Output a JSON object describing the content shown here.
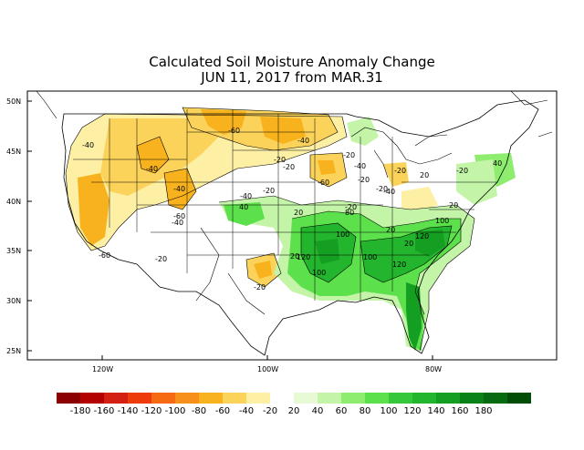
{
  "title": "Calculated Soil Moisture Anomaly Change",
  "subtitle": "JUN 11, 2017 from MAR.31",
  "lat_labels": [
    "50N",
    "45N",
    "40N",
    "35N",
    "30N",
    "25N"
  ],
  "lon_labels": [
    "120W",
    "100W",
    "80W"
  ],
  "contour_labels": [
    "-40",
    "-60",
    "-40",
    "-40",
    "-20",
    "-20",
    "-40",
    "-60",
    "-20",
    "-40",
    "-40",
    "-60",
    "-20",
    "-20",
    "-60",
    "-20",
    "-40",
    "-20",
    "-40",
    "-20",
    "-20",
    "20",
    "20",
    "40",
    "80",
    "100",
    "120",
    "100",
    "120",
    "100",
    "20",
    "20",
    "100",
    "120",
    "-20",
    "20",
    "-20",
    "20",
    "40"
  ],
  "legend": {
    "colors": [
      "#8b0000",
      "#b30000",
      "#d32010",
      "#ee3b0b",
      "#f56a12",
      "#f6901a",
      "#f8b21e",
      "#fbd35a",
      "#fdf0a5",
      "#ffffff",
      "#e8f9d5",
      "#c3f4a8",
      "#8eed6e",
      "#5ce04b",
      "#36c83a",
      "#24b52e",
      "#149e22",
      "#0b8218",
      "#066a10",
      "#004d08"
    ],
    "labels": [
      "-180",
      "-160",
      "-140",
      "-120",
      "-100",
      "-80",
      "-60",
      "-40",
      "-20",
      "20",
      "40",
      "60",
      "80",
      "100",
      "120",
      "140",
      "160",
      "180"
    ],
    "layout": "single-row-bottom"
  }
}
